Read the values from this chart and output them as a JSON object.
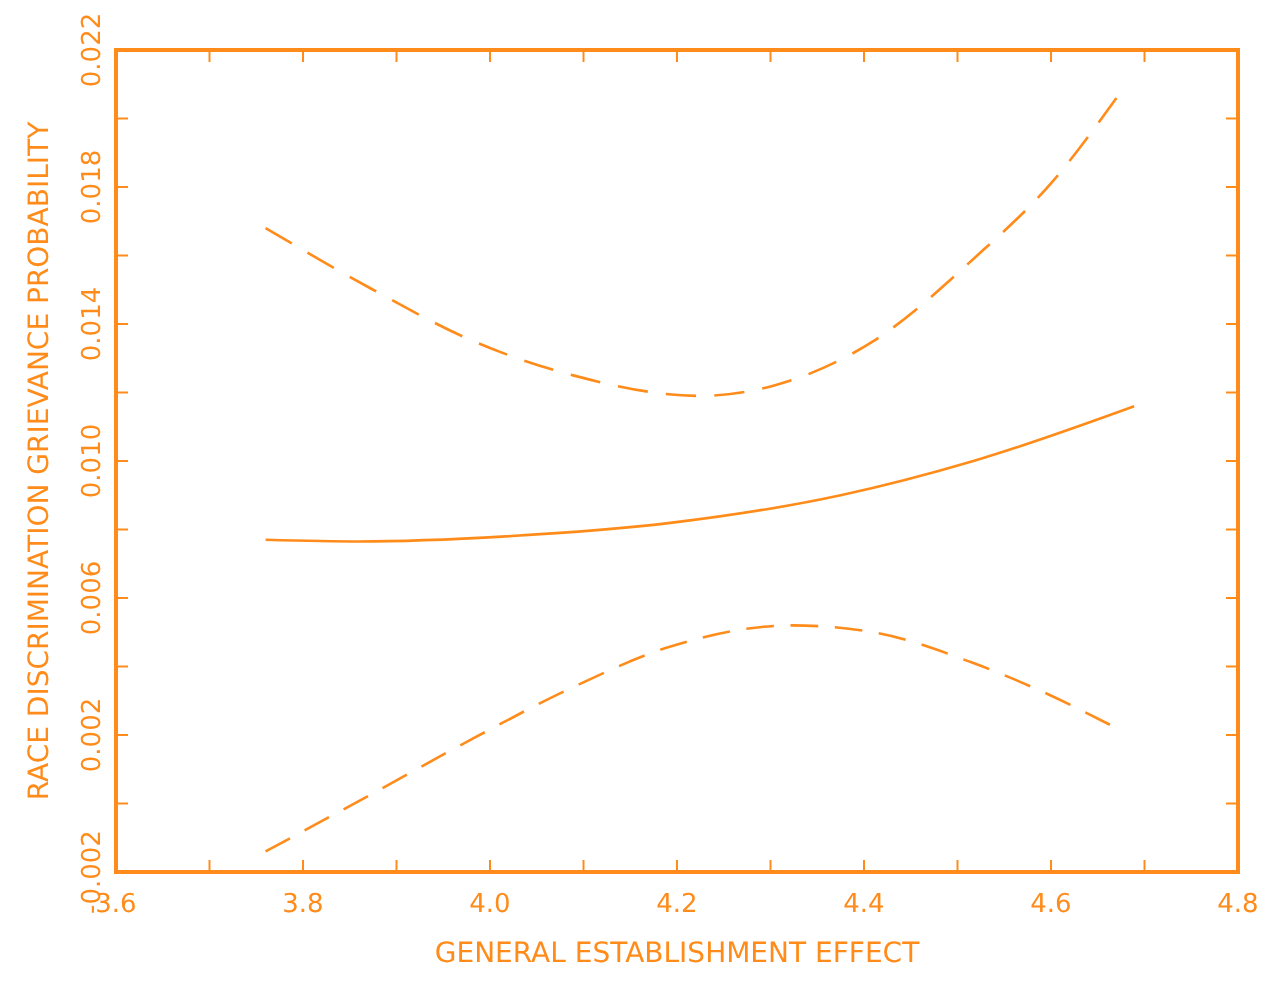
{
  "chart_data": {
    "type": "line",
    "xlabel": "GENERAL ESTABLISHMENT EFFECT",
    "ylabel": "RACE DISCRIMINATION GRIEVANCE PROBABILITY",
    "xlim": [
      3.6,
      4.8
    ],
    "ylim": [
      -0.002,
      0.022
    ],
    "xticks": [
      3.6,
      {
        "value": 3.7,
        "label": null
      },
      3.8,
      {
        "value": 3.9,
        "label": null
      },
      {
        "value": 4,
        "label": "4.0"
      },
      {
        "value": 4.1,
        "label": null
      },
      4.2,
      {
        "value": 4.3,
        "label": null
      },
      4.4,
      {
        "value": 4.5,
        "label": null
      },
      4.6,
      {
        "value": 4.7,
        "label": null
      },
      4.8
    ],
    "yticks": [
      -0.002,
      {
        "value": 0,
        "label": null
      },
      0.002,
      {
        "value": 0.004,
        "label": null
      },
      0.006,
      {
        "value": 0.008,
        "label": null
      },
      {
        "value": 0.01,
        "label": "0.010"
      },
      {
        "value": 0.012,
        "label": null
      },
      0.014,
      {
        "value": 0.016,
        "label": null
      },
      0.018,
      {
        "value": 0.02,
        "label": null
      },
      0.022
    ],
    "grid": false,
    "series": [
      {
        "color": "#ff8c1a",
        "line_style": "solid",
        "x": [
          3.76,
          3.86,
          4.017,
          4.195,
          4.375,
          4.517,
          4.689
        ],
        "values": [
          0.0077,
          0.00765,
          0.0078,
          0.0082,
          0.009,
          0.01,
          0.0116
        ]
      },
      {
        "color": "#ff8c1a",
        "line_style": "dashed",
        "x": [
          3.76,
          3.875,
          3.982,
          4.089,
          4.225,
          4.303,
          4.41,
          4.517,
          4.603,
          4.67
        ],
        "values": [
          0.0168,
          0.015,
          0.0135,
          0.0125,
          0.0119,
          0.0122,
          0.0135,
          0.0159,
          0.0182,
          0.0206
        ]
      },
      {
        "color": "#ff8c1a",
        "line_style": "dashed",
        "x": [
          3.76,
          3.875,
          3.982,
          4.089,
          4.195,
          4.323,
          4.41,
          4.517,
          4.588,
          4.663
        ],
        "values": [
          -0.0014,
          0.0003,
          0.0019,
          0.0034,
          0.0046,
          0.0052,
          0.005,
          0.0041,
          0.0033,
          0.0023
        ]
      }
    ]
  }
}
